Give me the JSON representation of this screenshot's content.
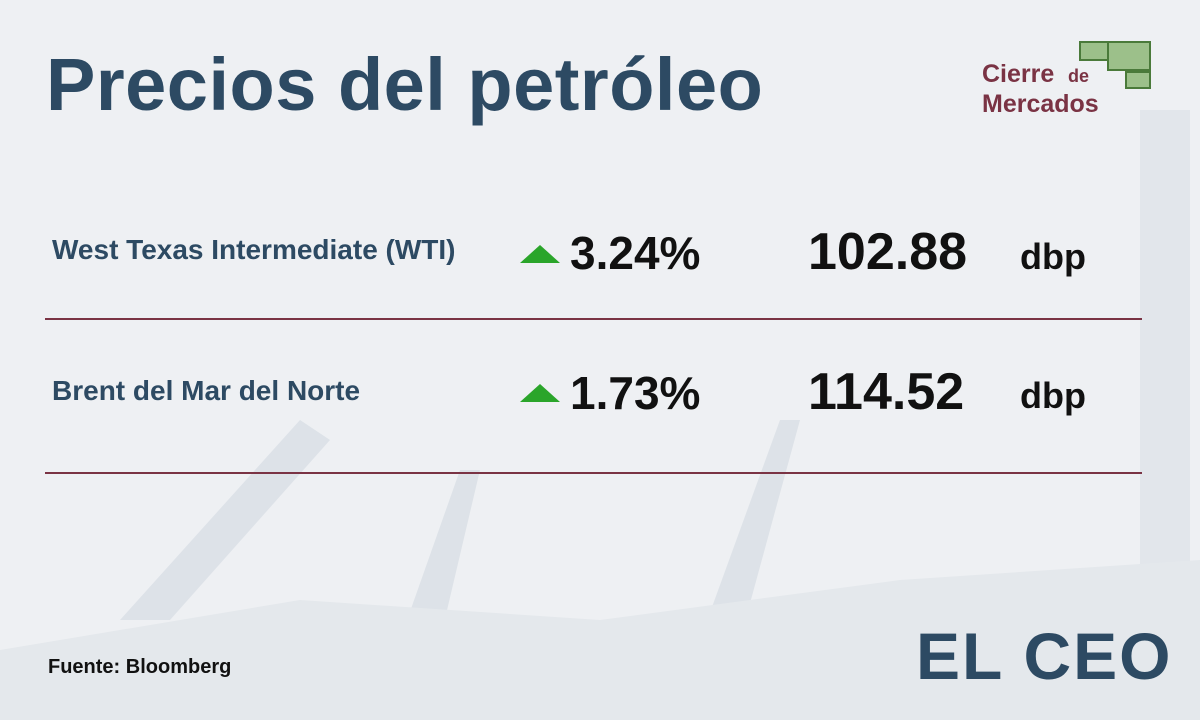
{
  "header": {
    "title": "Precios del petróleo",
    "badge": {
      "line1": "Cierre",
      "small": "de",
      "line2": "Mercados"
    }
  },
  "table": {
    "rows": [
      {
        "name": "West Texas Intermediate (WTI)",
        "change": "3.24%",
        "price": "102.88",
        "unit": "dbp"
      },
      {
        "name": "Brent del Mar del Norte",
        "change": "1.73%",
        "price": "114.52",
        "unit": "dbp"
      }
    ]
  },
  "footer": {
    "source": "Fuente: Bloomberg",
    "logo": "EL CEO"
  }
}
